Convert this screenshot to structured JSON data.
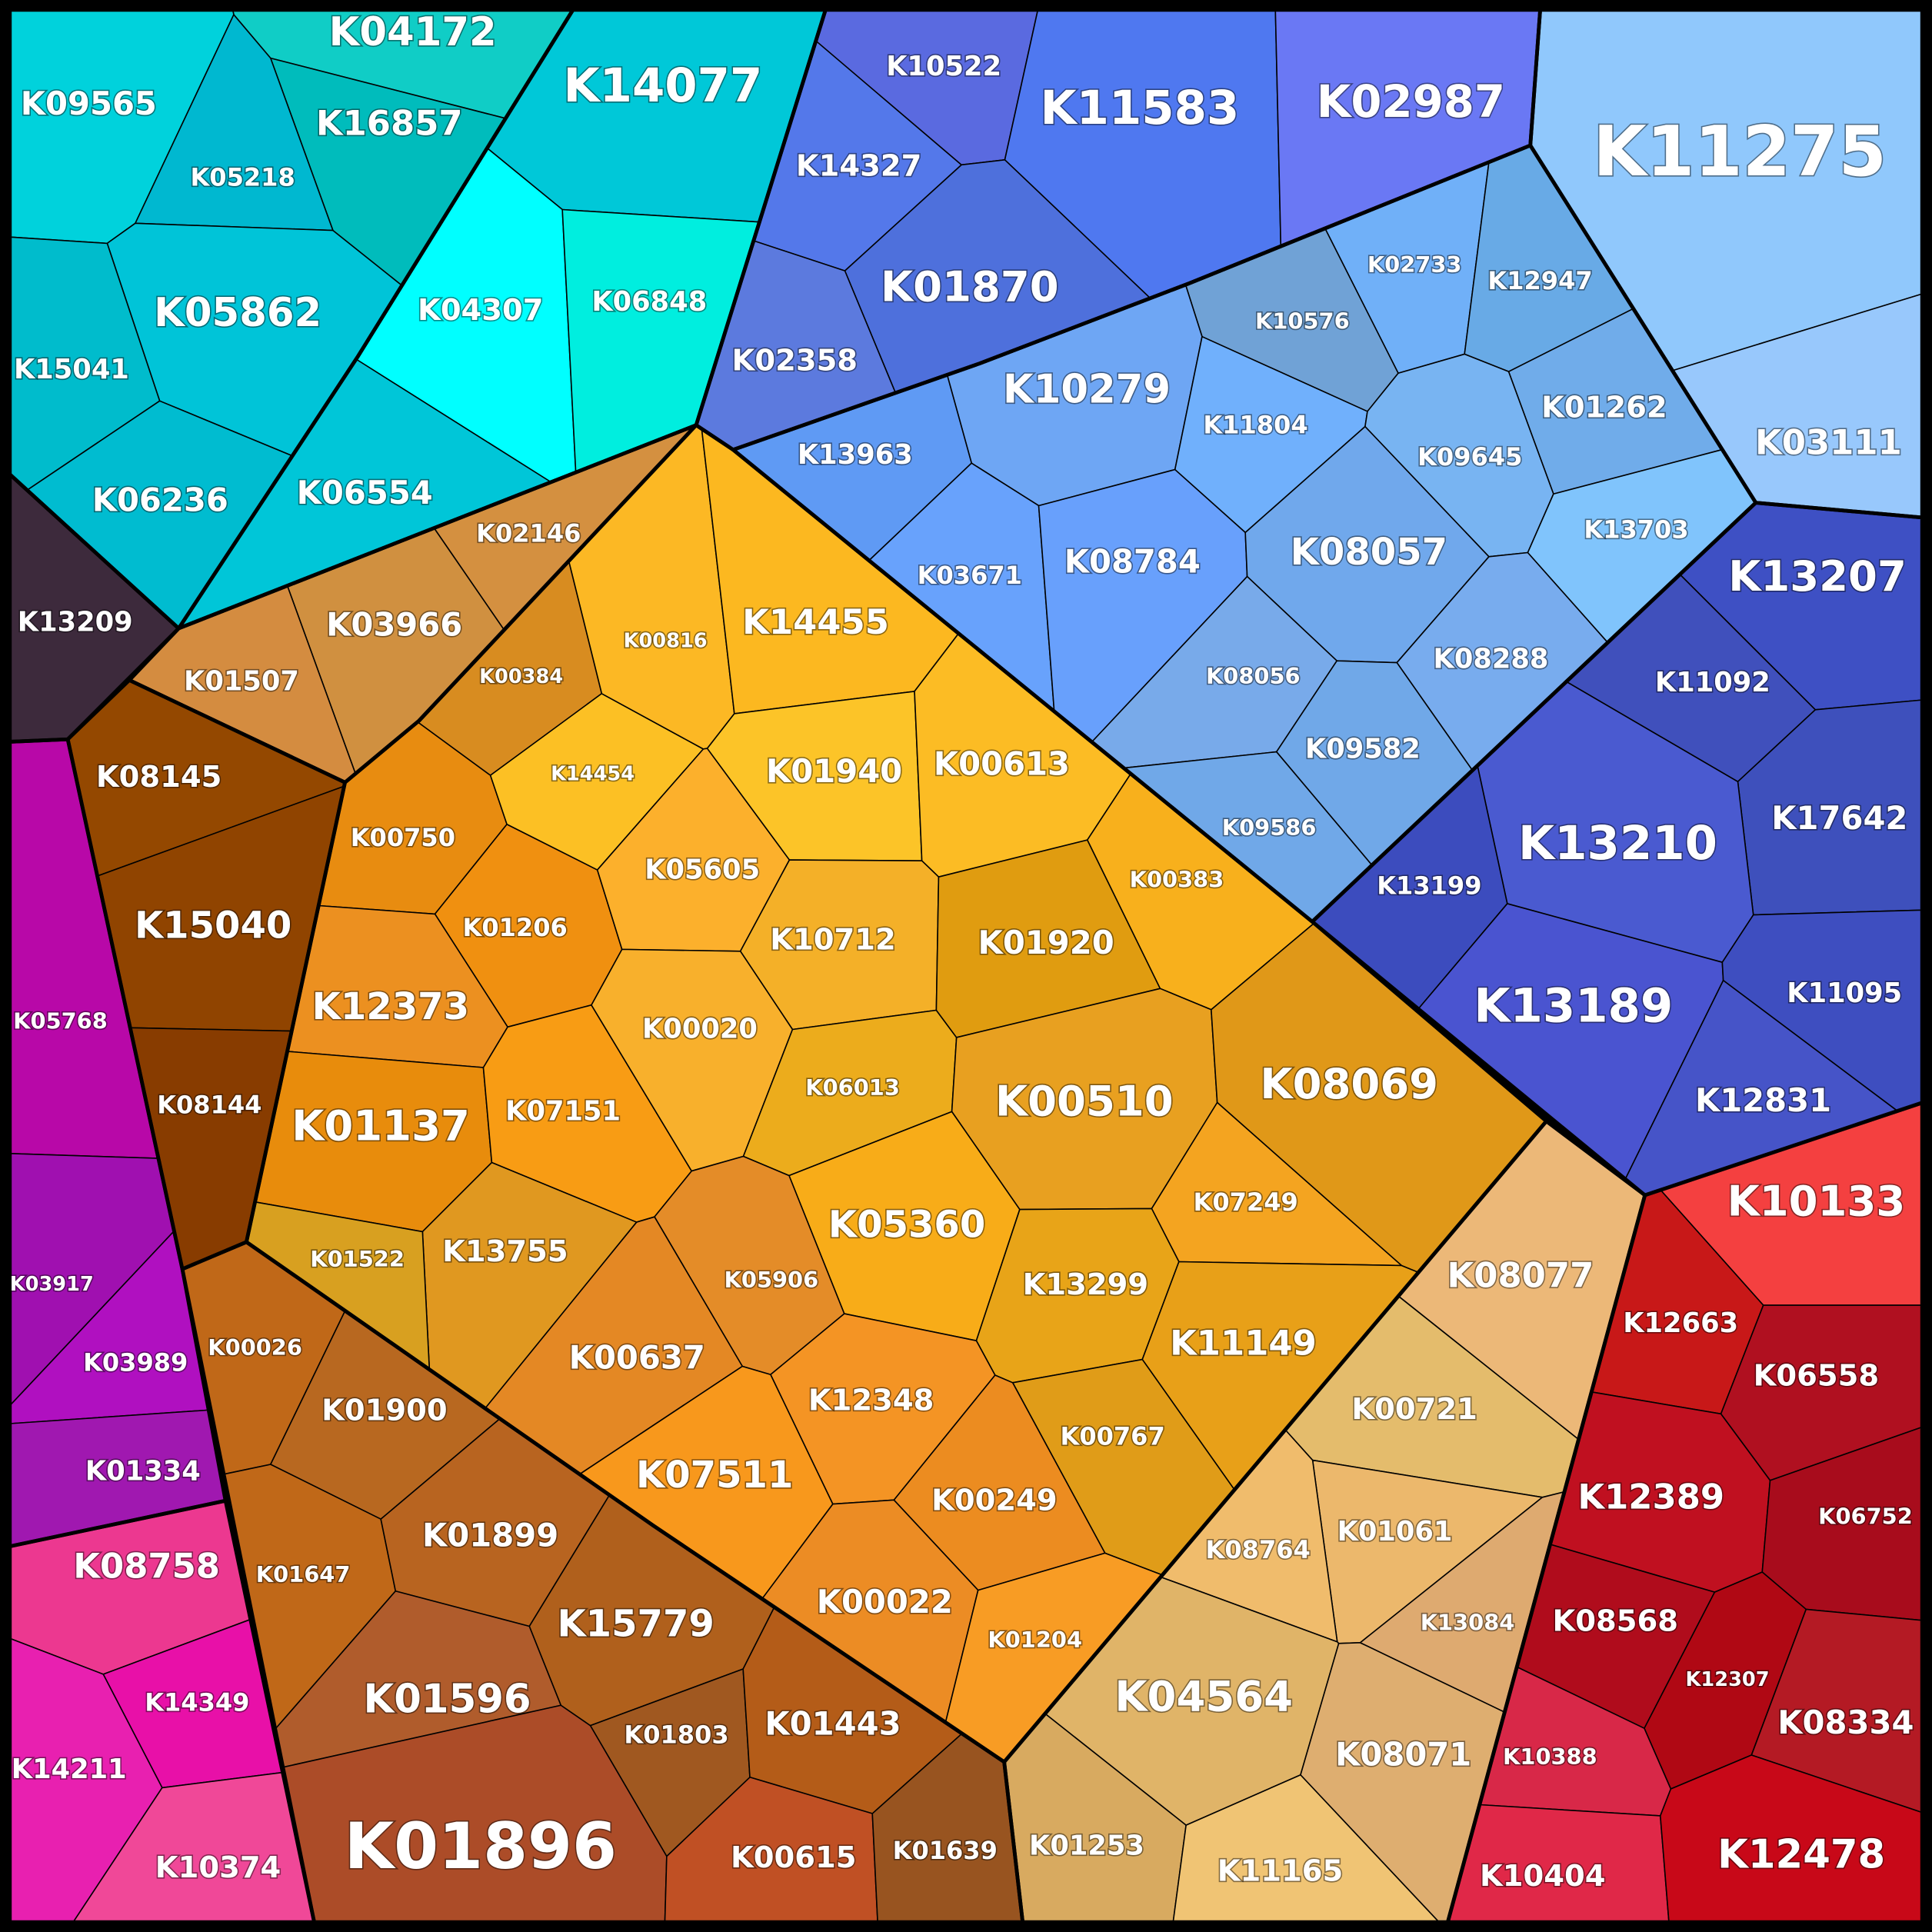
{
  "treemap": {
    "groups": [
      [
        "K04172",
        "K09565",
        "K16857",
        "K05218",
        "K05862",
        "K15041",
        "K06236"
      ],
      [
        "K14077",
        "K04307",
        "K06848",
        "K06554"
      ],
      [
        "K13209"
      ],
      [
        "K10522",
        "K11583",
        "K02987",
        "K14327",
        "K01870",
        "K02358"
      ],
      [
        "K11275",
        "K03111"
      ],
      [
        "K02733",
        "K12947",
        "K10576",
        "K10279",
        "K11804",
        "K01262",
        "K09645",
        "K13963",
        "K03671",
        "K08784",
        "K08057",
        "K13703",
        "K08056",
        "K08288",
        "K09582",
        "K09586"
      ],
      [
        "K13207",
        "K11092",
        "K17642",
        "K13210",
        "K13199",
        "K13189",
        "K11095",
        "K12831"
      ],
      [
        "K10133",
        "K12663",
        "K06558",
        "K12389",
        "K06752",
        "K08568",
        "K12307",
        "K08334",
        "K10388",
        "K10404",
        "K12478"
      ],
      [
        "K08077",
        "K00721",
        "K01061",
        "K08764",
        "K13084",
        "K04564",
        "K08071",
        "K01253",
        "K11165"
      ],
      [
        "K00750",
        "K01206",
        "K12373",
        "K01137",
        "K07151",
        "K14454",
        "K00816",
        "K00384",
        "K14455",
        "K05605",
        "K01940",
        "K00613",
        "K10712",
        "K00020",
        "K06013",
        "K01920",
        "K00383",
        "K00510",
        "K08069",
        "K05360",
        "K07249",
        "K13299",
        "K11149",
        "K00767",
        "K05906",
        "K00637",
        "K12348",
        "K07511",
        "K00249",
        "K00022",
        "K01204",
        "K13755",
        "K01522"
      ],
      [
        "K02146",
        "K03966",
        "K01507"
      ],
      [
        "K08145",
        "K15040",
        "K08144"
      ],
      [
        "K00026",
        "K01900",
        "K01647",
        "K01899",
        "K15779",
        "K01596",
        "K01803",
        "K01443",
        "K01896",
        "K00615",
        "K01639"
      ],
      [
        "K05768",
        "K03917",
        "K03989",
        "K01334"
      ],
      [
        "K08758",
        "K14349",
        "K14211",
        "K10374"
      ]
    ]
  }
}
